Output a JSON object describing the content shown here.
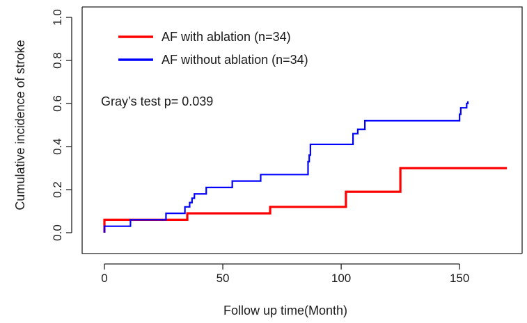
{
  "chart_data": {
    "type": "line",
    "xlabel": "Follow up time(Month)",
    "ylabel": "Cumulative incidence of stroke",
    "xlim": [
      0,
      170
    ],
    "ylim": [
      0,
      1.0
    ],
    "xticks": [
      0,
      50,
      100,
      150
    ],
    "xtick_labels": [
      "0",
      "50",
      "100",
      "150"
    ],
    "yticks": [
      0.0,
      0.2,
      0.4,
      0.6,
      0.8,
      1.0
    ],
    "ytick_labels": [
      "0.0",
      "0.2",
      "0.4",
      "0.6",
      "0.8",
      "1.0"
    ],
    "grid": false,
    "legend_position": "top-left",
    "annotation": "Gray’s test p= 0.039",
    "series": [
      {
        "name": "AF with ablation (n=34)",
        "color": "#ff0000",
        "step": true,
        "x": [
          0,
          0,
          35,
          70,
          102,
          125,
          170
        ],
        "y": [
          0.0,
          0.06,
          0.09,
          0.12,
          0.19,
          0.3,
          0.3
        ]
      },
      {
        "name": "AF without ablation (n=34)",
        "color": "#0000ff",
        "step": true,
        "x": [
          0,
          0,
          11,
          26,
          34,
          36,
          37,
          38,
          43,
          54,
          66,
          86,
          86.5,
          87,
          105,
          107,
          110,
          150,
          150.5,
          153,
          153.5
        ],
        "y": [
          0.0,
          0.03,
          0.06,
          0.09,
          0.12,
          0.14,
          0.16,
          0.18,
          0.21,
          0.24,
          0.27,
          0.33,
          0.36,
          0.41,
          0.46,
          0.48,
          0.52,
          0.55,
          0.58,
          0.6,
          0.61
        ]
      }
    ]
  }
}
